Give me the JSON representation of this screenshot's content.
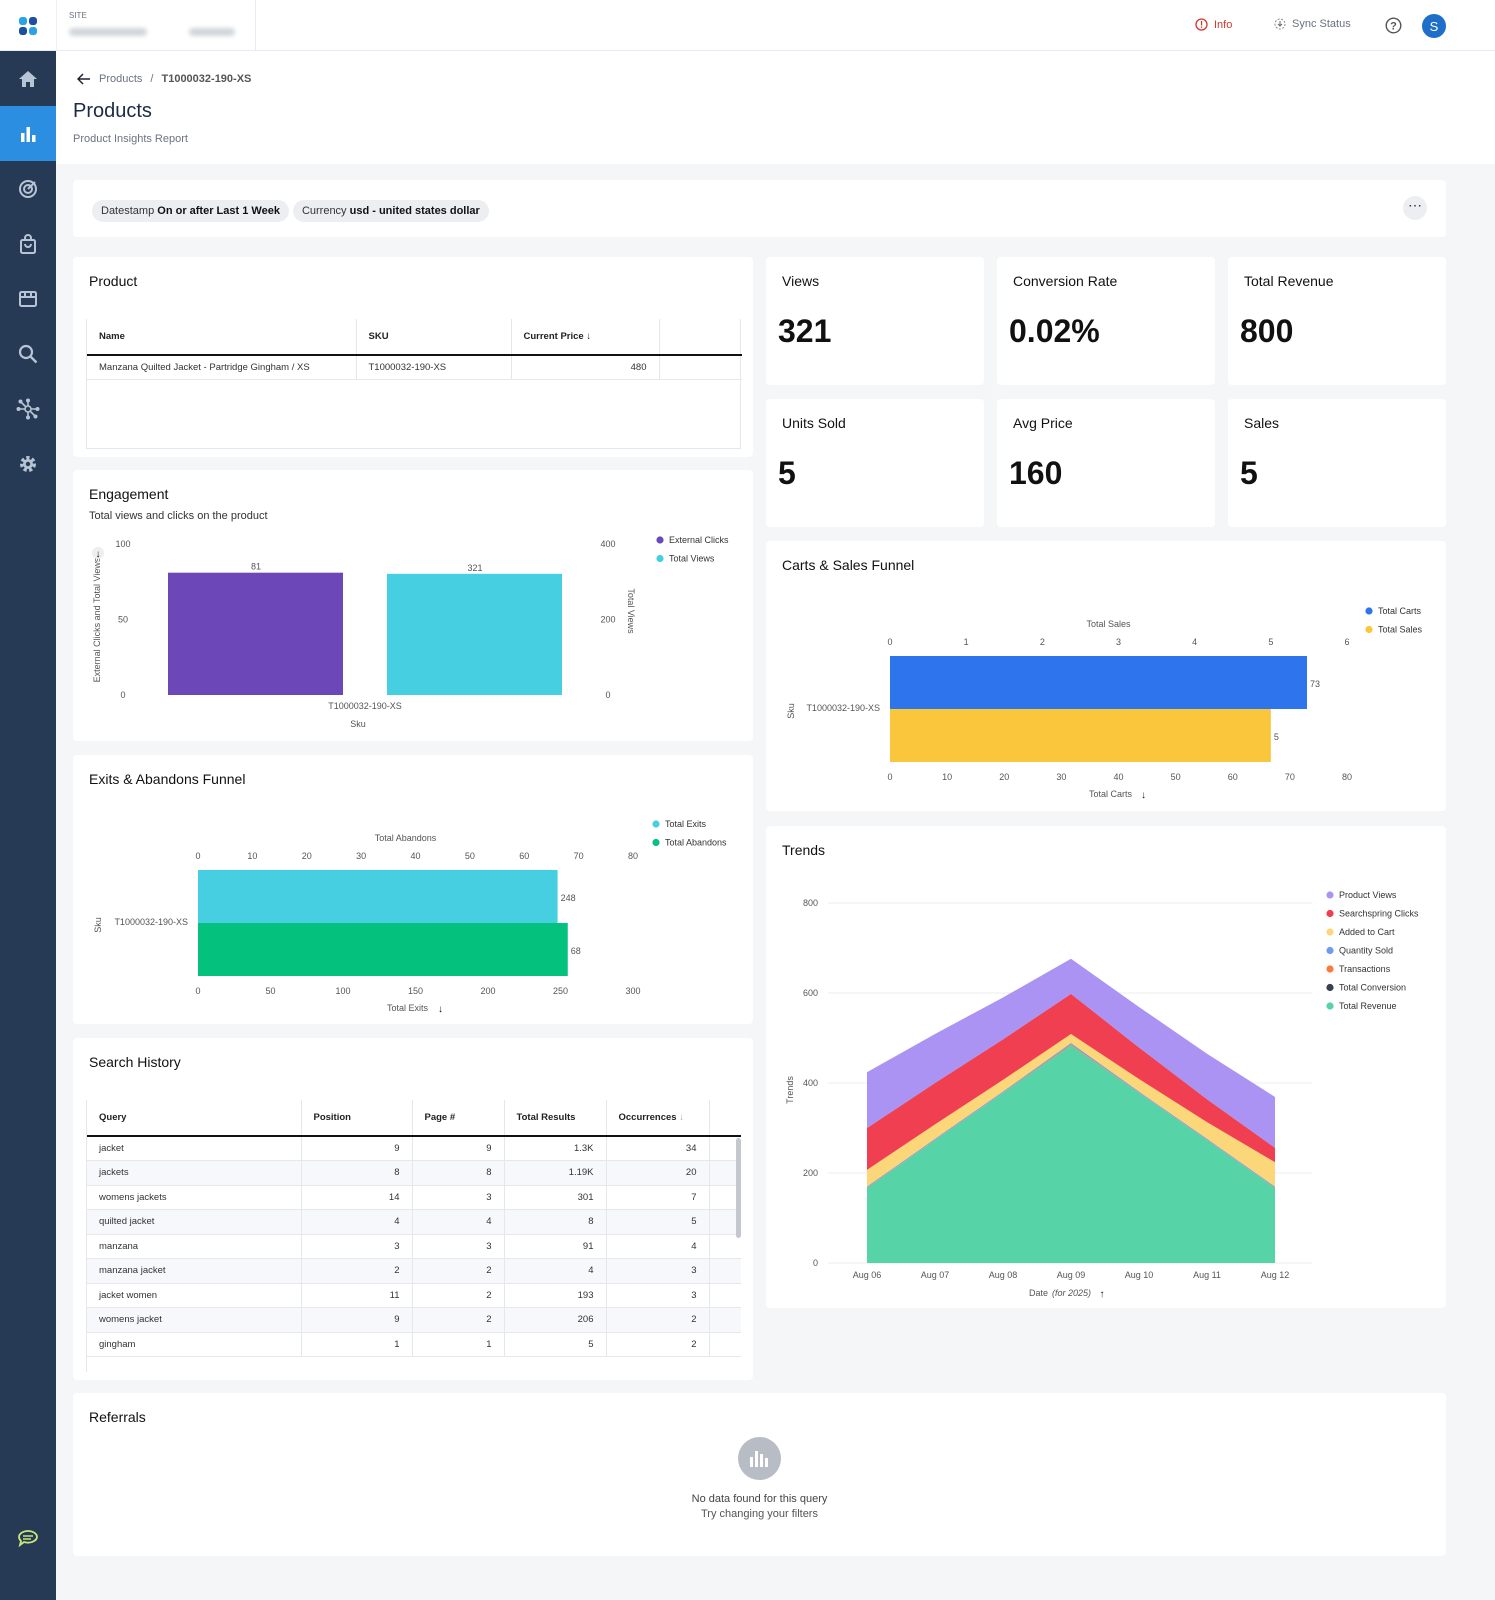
{
  "topbar": {
    "site_label": "SITE",
    "info": "Info",
    "sync_status": "Sync Status",
    "avatar": "S"
  },
  "sidebar": {
    "items": [
      "home-icon",
      "reports-icon",
      "target-icon",
      "bag-icon",
      "store-icon",
      "search-icon",
      "network-icon",
      "gear-icon"
    ],
    "active": "reports-icon"
  },
  "breadcrumb": {
    "parent": "Products",
    "separator": "/",
    "current": "T1000032-190-XS"
  },
  "page": {
    "title": "Products",
    "subtitle": "Product Insights Report"
  },
  "filters": [
    {
      "key": "Datestamp",
      "value": "On or after Last 1 Week"
    },
    {
      "key": "Currency",
      "value": "usd - united states dollar"
    }
  ],
  "product": {
    "title": "Product",
    "columns": [
      "Name",
      "SKU",
      "Current Price"
    ],
    "rows": [
      [
        "Manzana Quilted Jacket - Partridge Gingham / XS",
        "T1000032-190-XS",
        "480"
      ]
    ]
  },
  "kpis": [
    {
      "label": "Views",
      "value": "321"
    },
    {
      "label": "Conversion Rate",
      "value": "0.02%"
    },
    {
      "label": "Total Revenue",
      "value": "800"
    },
    {
      "label": "Units Sold",
      "value": "5"
    },
    {
      "label": "Avg Price",
      "value": "160"
    },
    {
      "label": "Sales",
      "value": "5"
    }
  ],
  "engagement": {
    "title": "Engagement",
    "subtitle": "Total views and clicks on the product"
  },
  "exits": {
    "title": "Exits & Abandons Funnel"
  },
  "carts": {
    "title": "Carts & Sales Funnel"
  },
  "trends": {
    "title": "Trends"
  },
  "search_history": {
    "title": "Search History",
    "columns": [
      "Query",
      "Position",
      "Page #",
      "Total Results",
      "Occurrences"
    ],
    "rows": [
      [
        "jacket",
        "9",
        "9",
        "1.3K",
        "34"
      ],
      [
        "jackets",
        "8",
        "8",
        "1.19K",
        "20"
      ],
      [
        "womens jackets",
        "14",
        "3",
        "301",
        "7"
      ],
      [
        "quilted jacket",
        "4",
        "4",
        "8",
        "5"
      ],
      [
        "manzana",
        "3",
        "3",
        "91",
        "4"
      ],
      [
        "manzana jacket",
        "2",
        "2",
        "4",
        "3"
      ],
      [
        "jacket women",
        "11",
        "2",
        "193",
        "3"
      ],
      [
        "womens jacket",
        "9",
        "2",
        "206",
        "2"
      ],
      [
        "gingham",
        "1",
        "1",
        "5",
        "2"
      ]
    ]
  },
  "referrals": {
    "title": "Referrals",
    "empty_line1": "No data found for this query",
    "empty_line2": "Try changing your filters"
  },
  "chart_data": [
    {
      "type": "bar",
      "id": "engagement",
      "categories": [
        "T1000032-190-XS"
      ],
      "xlabel": "Sku",
      "ylabel": "External Clicks and Total Views",
      "ylabel_right": "Total Views",
      "ylim": [
        0,
        100
      ],
      "ylim_right": [
        0,
        400
      ],
      "yticks": [
        0,
        50,
        100
      ],
      "yticks_right": [
        0,
        200,
        400
      ],
      "legend": "top-right",
      "series": [
        {
          "name": "External Clicks",
          "values": [
            81
          ],
          "color": "#6b47b8",
          "axis": "left"
        },
        {
          "name": "Total Views",
          "values": [
            321
          ],
          "color": "#45cfe0",
          "axis": "right"
        }
      ]
    },
    {
      "type": "bar",
      "id": "exits",
      "orientation": "horizontal",
      "categories": [
        "T1000032-190-XS"
      ],
      "ylabel": "Sku",
      "legend": "top-right",
      "xlabel_bottom": "Total Exits",
      "xlim_bottom": [
        0,
        300
      ],
      "xticks_bottom": [
        0,
        50,
        100,
        150,
        200,
        250,
        300
      ],
      "xlabel_top": "Total Abandons",
      "xlim_top": [
        0,
        80
      ],
      "xticks_top": [
        0,
        10,
        20,
        30,
        40,
        50,
        60,
        70,
        80
      ],
      "series": [
        {
          "name": "Total Exits",
          "values": [
            248
          ],
          "color": "#45cfe0",
          "axis": "bottom"
        },
        {
          "name": "Total Abandons",
          "values": [
            68
          ],
          "color": "#04c27e",
          "axis": "top"
        }
      ]
    },
    {
      "type": "bar",
      "id": "carts",
      "orientation": "horizontal",
      "categories": [
        "T1000032-190-XS"
      ],
      "ylabel": "Sku",
      "legend": "top-right",
      "xlabel_bottom": "Total Carts",
      "xlim_bottom": [
        0,
        80
      ],
      "xticks_bottom": [
        0,
        10,
        20,
        30,
        40,
        50,
        60,
        70,
        80
      ],
      "xlabel_top": "Total Sales",
      "xlim_top": [
        0,
        6
      ],
      "xticks_top": [
        0,
        1,
        2,
        3,
        4,
        5,
        6
      ],
      "series": [
        {
          "name": "Total Carts",
          "values": [
            73
          ],
          "color": "#2e74ec",
          "axis": "bottom"
        },
        {
          "name": "Total Sales",
          "values": [
            5
          ],
          "color": "#f9c63c",
          "axis": "top"
        }
      ]
    },
    {
      "type": "area",
      "id": "trends",
      "stacked": true,
      "x": [
        "Aug 06",
        "Aug 07",
        "Aug 08",
        "Aug 09",
        "Aug 10",
        "Aug 11",
        "Aug 12"
      ],
      "xlabel": "Date",
      "xlabel_note": "(for 2025)",
      "ylabel": "Trends",
      "ylim": [
        0,
        800
      ],
      "yticks": [
        0,
        200,
        400,
        600,
        800
      ],
      "grid": true,
      "legend": "right",
      "series": [
        {
          "name": "Total Revenue",
          "color": "#57d3a8",
          "values": [
            167,
            273,
            378,
            484,
            378,
            273,
            167
          ]
        },
        {
          "name": "Total Conversion",
          "color": "#374151",
          "values": [
            0,
            0,
            0,
            0,
            0,
            0,
            0
          ]
        },
        {
          "name": "Transactions",
          "color": "#f97b3d",
          "values": [
            1,
            1,
            1,
            2,
            1,
            1,
            1
          ]
        },
        {
          "name": "Quantity Sold",
          "color": "#6b9cf0",
          "values": [
            2,
            2,
            2,
            3,
            2,
            2,
            2
          ]
        },
        {
          "name": "Added to Cart",
          "color": "#fcd77a",
          "values": [
            37,
            32,
            26,
            20,
            28,
            37,
            54
          ]
        },
        {
          "name": "Searchspring Clicks",
          "color": "#ef3f51",
          "values": [
            93,
            92,
            90,
            89,
            70,
            51,
            32
          ]
        },
        {
          "name": "Product Views",
          "color": "#ab93f3",
          "values": [
            124,
            109,
            93,
            78,
            90,
            101,
            113
          ]
        }
      ]
    }
  ]
}
